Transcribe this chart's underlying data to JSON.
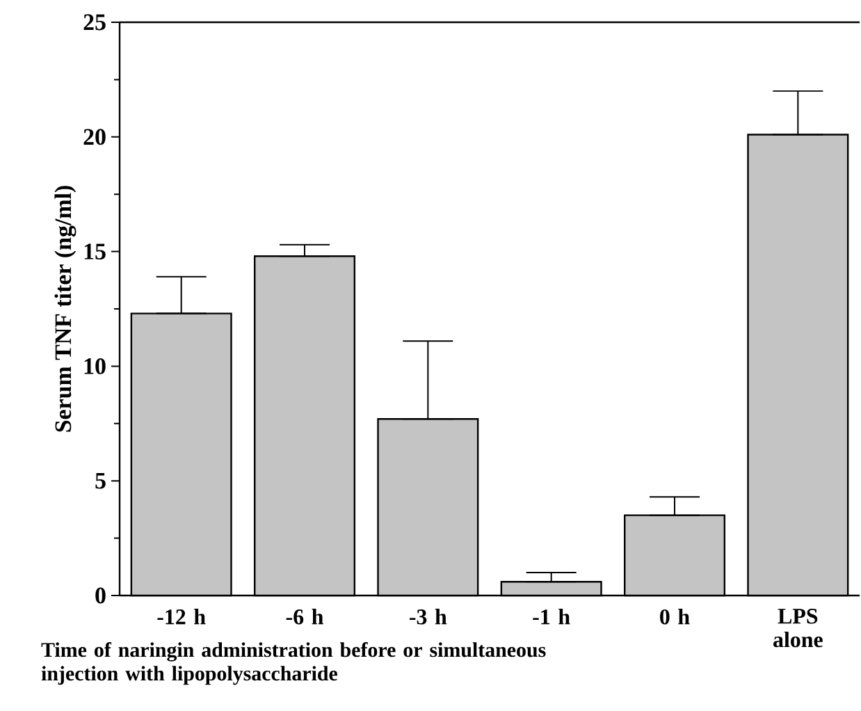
{
  "chart_data": {
    "type": "bar",
    "ylabel": "Serum TNF titer (ng/ml)",
    "xlabel": "Time of naringin administration before or simultaneous injection with lipopolysaccharide",
    "categories": [
      "-12 h",
      "-6 h",
      "-3 h",
      "-1 h",
      "0 h",
      "LPS alone"
    ],
    "values": [
      12.3,
      14.8,
      7.7,
      0.6,
      3.5,
      20.1
    ],
    "errors": [
      [
        12.3,
        13.9
      ],
      [
        14.8,
        15.3
      ],
      [
        7.7,
        11.1
      ],
      [
        0.6,
        1.0
      ],
      [
        3.5,
        4.3
      ],
      [
        20.1,
        22.0
      ]
    ],
    "color": "#c4c4c4",
    "ylim": [
      0,
      25
    ],
    "yticks": [
      0,
      {
        "value": 2.5,
        "label": null
      },
      5,
      {
        "value": 7.5,
        "label": null
      },
      10,
      {
        "value": 12.5,
        "label": null
      },
      15,
      {
        "value": 17.5,
        "label": null
      },
      20,
      {
        "value": 22.5,
        "label": null
      },
      25
    ],
    "grid": false
  }
}
